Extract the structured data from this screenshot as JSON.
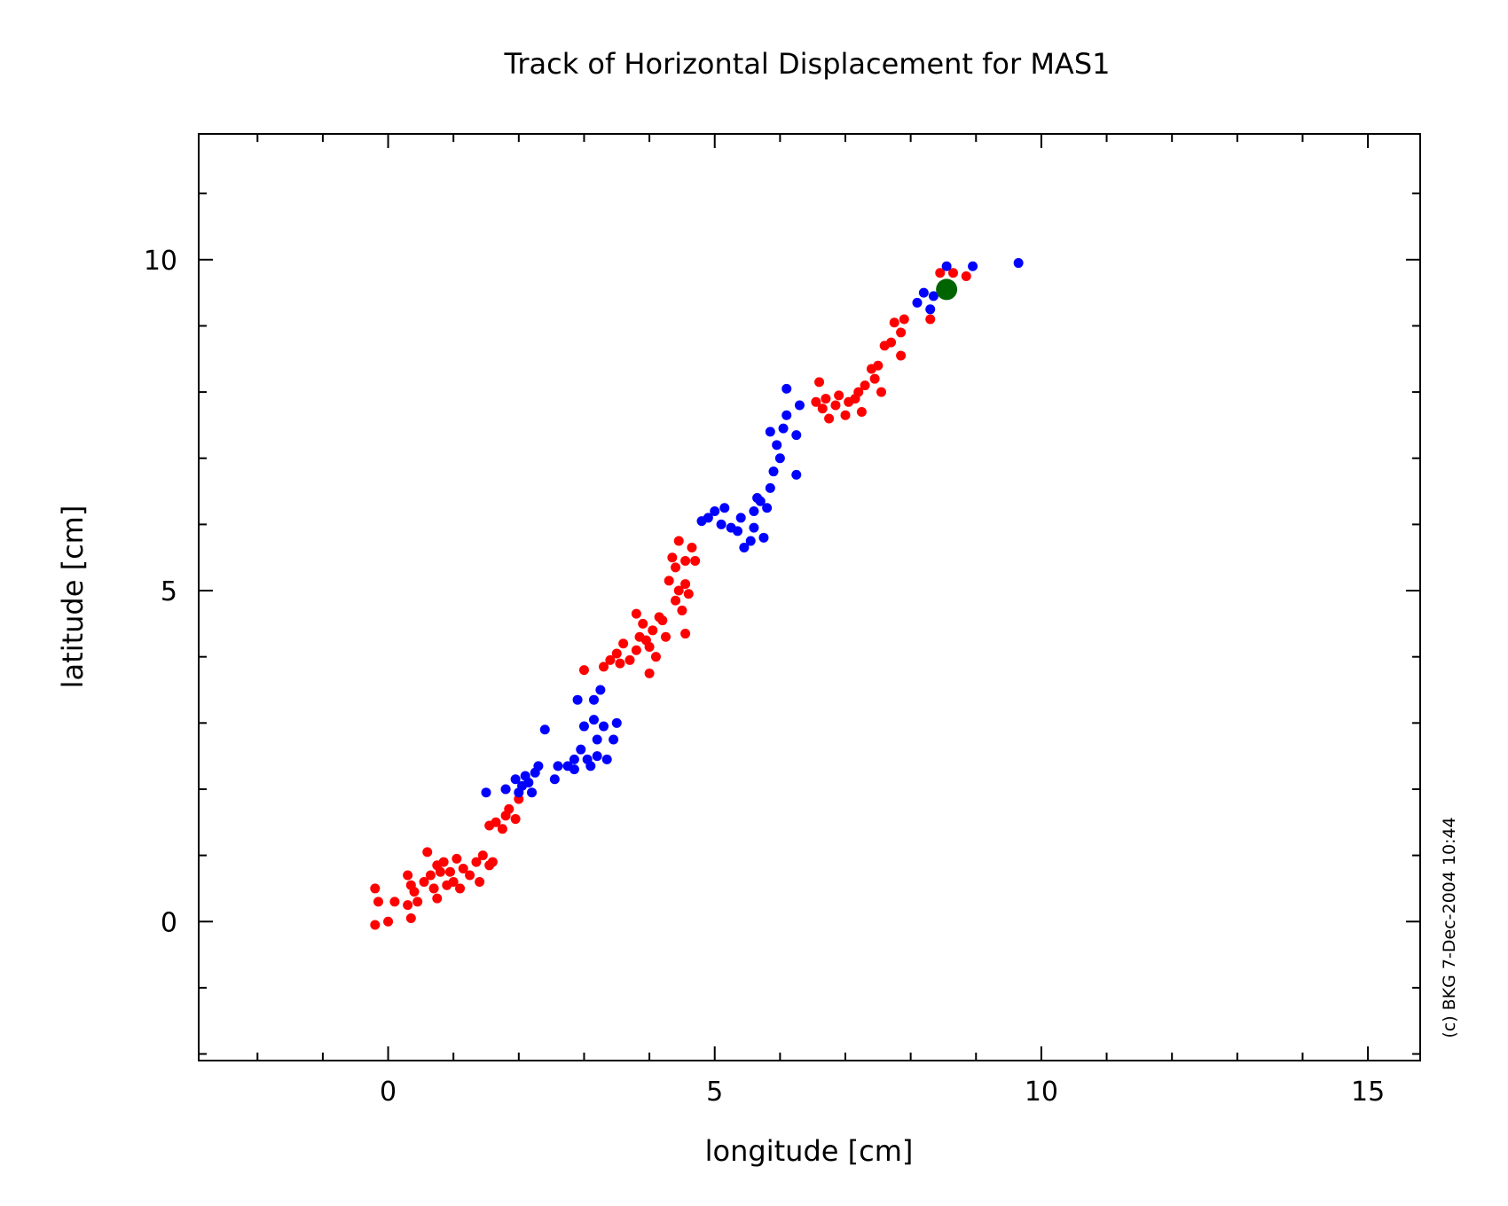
{
  "chart_data": {
    "type": "scatter",
    "title": "Track of Horizontal Displacement for MAS1",
    "xlabel": "longitude [cm]",
    "ylabel": "latitude [cm]",
    "xlim": [
      -2.9,
      15.8
    ],
    "ylim": [
      -2.1,
      11.9
    ],
    "x_ticks": [
      0,
      5,
      10,
      15
    ],
    "y_ticks": [
      0,
      5,
      10
    ],
    "x_minor_step": 1,
    "y_minor_step": 1,
    "grid": false,
    "legend": "none",
    "credit": "(c) BKG 7-Dec-2004 10:44",
    "colors": {
      "red": "#ff0000",
      "blue": "#0000ff",
      "green": "#006400",
      "axis": "#000000"
    },
    "series": [
      {
        "color": "#ff0000",
        "points": [
          [
            -0.2,
            0.5
          ],
          [
            -0.15,
            0.3
          ],
          [
            -0.2,
            -0.05
          ],
          [
            0.0,
            0.0
          ],
          [
            0.1,
            0.3
          ],
          [
            0.3,
            0.7
          ],
          [
            0.35,
            0.55
          ],
          [
            0.3,
            0.25
          ],
          [
            0.4,
            0.45
          ],
          [
            0.35,
            0.05
          ],
          [
            0.45,
            0.3
          ],
          [
            0.55,
            0.6
          ],
          [
            0.6,
            1.05
          ],
          [
            0.65,
            0.7
          ],
          [
            0.7,
            0.5
          ],
          [
            0.75,
            0.85
          ],
          [
            0.8,
            0.75
          ],
          [
            0.85,
            0.9
          ],
          [
            0.75,
            0.35
          ],
          [
            0.9,
            0.55
          ],
          [
            0.95,
            0.75
          ],
          [
            1.0,
            0.6
          ],
          [
            1.05,
            0.95
          ],
          [
            1.1,
            0.5
          ],
          [
            1.15,
            0.8
          ],
          [
            1.25,
            0.7
          ],
          [
            1.35,
            0.9
          ],
          [
            1.4,
            0.6
          ],
          [
            1.45,
            1.0
          ],
          [
            1.55,
            0.85
          ],
          [
            1.6,
            0.9
          ],
          [
            1.55,
            1.45
          ],
          [
            1.65,
            1.5
          ],
          [
            1.75,
            1.4
          ],
          [
            1.8,
            1.6
          ],
          [
            1.85,
            1.7
          ],
          [
            1.95,
            1.55
          ],
          [
            2.0,
            1.85
          ],
          [
            1.8,
            2.0
          ],
          [
            3.0,
            3.8
          ],
          [
            3.3,
            3.85
          ],
          [
            3.4,
            3.95
          ],
          [
            3.5,
            4.05
          ],
          [
            3.55,
            3.9
          ],
          [
            3.6,
            4.2
          ],
          [
            3.7,
            3.95
          ],
          [
            3.8,
            4.1
          ],
          [
            3.85,
            4.3
          ],
          [
            3.8,
            4.65
          ],
          [
            3.9,
            4.5
          ],
          [
            3.95,
            4.25
          ],
          [
            4.0,
            4.15
          ],
          [
            4.05,
            4.4
          ],
          [
            4.0,
            3.75
          ],
          [
            4.1,
            4.0
          ],
          [
            4.15,
            4.6
          ],
          [
            4.2,
            4.55
          ],
          [
            4.25,
            4.3
          ],
          [
            4.3,
            5.15
          ],
          [
            4.35,
            5.5
          ],
          [
            4.4,
            5.35
          ],
          [
            4.45,
            5.0
          ],
          [
            4.5,
            4.7
          ],
          [
            4.4,
            4.85
          ],
          [
            4.45,
            5.75
          ],
          [
            4.55,
            5.45
          ],
          [
            4.6,
            4.95
          ],
          [
            4.55,
            4.35
          ],
          [
            4.65,
            5.65
          ],
          [
            4.7,
            5.45
          ],
          [
            4.55,
            5.1
          ],
          [
            6.55,
            7.85
          ],
          [
            6.6,
            8.15
          ],
          [
            6.65,
            7.75
          ],
          [
            6.7,
            7.9
          ],
          [
            6.75,
            7.6
          ],
          [
            6.85,
            7.8
          ],
          [
            6.9,
            7.95
          ],
          [
            7.0,
            7.65
          ],
          [
            7.05,
            7.85
          ],
          [
            7.15,
            7.9
          ],
          [
            7.2,
            8.0
          ],
          [
            7.25,
            7.7
          ],
          [
            7.3,
            8.1
          ],
          [
            7.4,
            8.35
          ],
          [
            7.45,
            8.2
          ],
          [
            7.5,
            8.4
          ],
          [
            7.55,
            8.0
          ],
          [
            7.6,
            8.7
          ],
          [
            7.7,
            8.75
          ],
          [
            7.75,
            9.05
          ],
          [
            7.85,
            8.9
          ],
          [
            7.85,
            8.55
          ],
          [
            7.9,
            9.1
          ],
          [
            8.3,
            9.1
          ],
          [
            8.45,
            9.8
          ],
          [
            8.65,
            9.8
          ],
          [
            8.85,
            9.75
          ]
        ]
      },
      {
        "color": "#0000ff",
        "points": [
          [
            1.5,
            1.95
          ],
          [
            1.8,
            2.0
          ],
          [
            1.95,
            2.15
          ],
          [
            2.0,
            1.95
          ],
          [
            2.05,
            2.05
          ],
          [
            2.1,
            2.2
          ],
          [
            2.15,
            2.1
          ],
          [
            2.2,
            1.95
          ],
          [
            2.25,
            2.25
          ],
          [
            2.3,
            2.35
          ],
          [
            2.4,
            2.9
          ],
          [
            2.55,
            2.15
          ],
          [
            2.6,
            2.35
          ],
          [
            2.75,
            2.35
          ],
          [
            2.85,
            2.45
          ],
          [
            2.85,
            2.3
          ],
          [
            2.9,
            3.35
          ],
          [
            2.95,
            2.6
          ],
          [
            3.0,
            2.95
          ],
          [
            3.05,
            2.45
          ],
          [
            3.1,
            2.35
          ],
          [
            3.15,
            3.35
          ],
          [
            3.15,
            3.05
          ],
          [
            3.2,
            2.75
          ],
          [
            3.2,
            2.5
          ],
          [
            3.25,
            3.5
          ],
          [
            3.3,
            2.95
          ],
          [
            3.35,
            2.45
          ],
          [
            3.45,
            2.75
          ],
          [
            3.5,
            3.0
          ],
          [
            4.8,
            6.05
          ],
          [
            4.9,
            6.1
          ],
          [
            5.0,
            6.2
          ],
          [
            5.1,
            6.0
          ],
          [
            5.15,
            6.25
          ],
          [
            5.25,
            5.95
          ],
          [
            5.35,
            5.9
          ],
          [
            5.4,
            6.1
          ],
          [
            5.45,
            5.65
          ],
          [
            5.55,
            5.75
          ],
          [
            5.6,
            5.95
          ],
          [
            5.6,
            6.2
          ],
          [
            5.65,
            6.4
          ],
          [
            5.7,
            6.35
          ],
          [
            5.75,
            5.8
          ],
          [
            5.8,
            6.25
          ],
          [
            5.85,
            6.55
          ],
          [
            5.9,
            6.8
          ],
          [
            5.85,
            7.4
          ],
          [
            5.95,
            7.2
          ],
          [
            6.0,
            7.0
          ],
          [
            6.05,
            7.45
          ],
          [
            6.1,
            8.05
          ],
          [
            6.1,
            7.65
          ],
          [
            6.25,
            6.75
          ],
          [
            6.25,
            7.35
          ],
          [
            6.3,
            7.8
          ],
          [
            8.1,
            9.35
          ],
          [
            8.2,
            9.5
          ],
          [
            8.3,
            9.25
          ],
          [
            8.35,
            9.45
          ],
          [
            8.55,
            9.9
          ],
          [
            8.95,
            9.9
          ],
          [
            9.65,
            9.95
          ]
        ]
      },
      {
        "color": "#006400",
        "points": [
          [
            8.55,
            9.55
          ]
        ]
      }
    ]
  }
}
